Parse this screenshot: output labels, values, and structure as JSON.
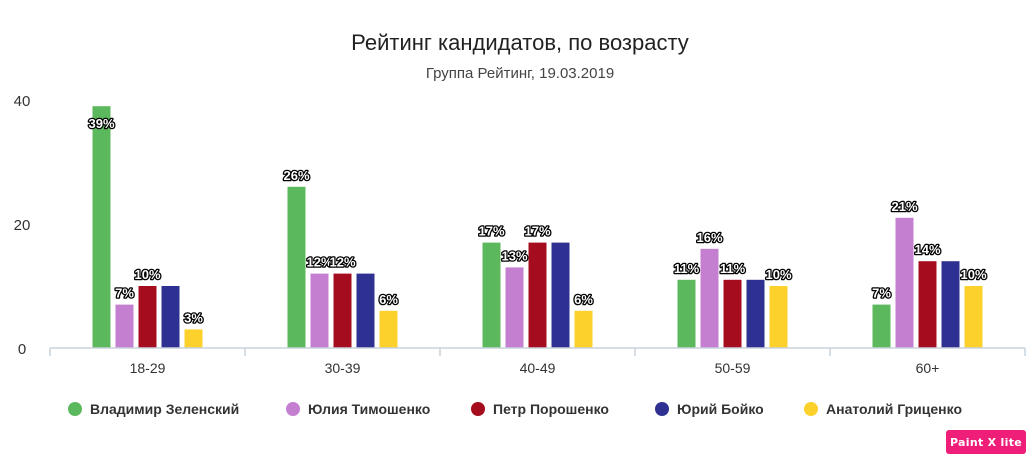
{
  "chart_data": {
    "type": "bar",
    "title": "Рейтинг кандидатов, по возрасту",
    "subtitle": "Группа Рейтинг, 19.03.2019",
    "categories": [
      "18-29",
      "30-39",
      "40-49",
      "50-59",
      "60+"
    ],
    "ylim": [
      0,
      40
    ],
    "yticks": [
      0,
      20,
      40
    ],
    "grid": false,
    "legend_position": "bottom",
    "series": [
      {
        "name": "Владимир Зеленский",
        "color": "#5cb85c",
        "values": [
          39,
          26,
          17,
          11,
          7
        ],
        "labels": [
          "39%",
          "26%",
          "17%",
          "11%",
          "7%"
        ]
      },
      {
        "name": "Юлия Тимошенко",
        "color": "#c47fd0",
        "values": [
          7,
          12,
          13,
          16,
          21
        ],
        "labels": [
          "7%",
          "12%",
          "13%",
          "16%",
          "21%"
        ]
      },
      {
        "name": "Петр Порошенко",
        "color": "#a50c1e",
        "values": [
          10,
          12,
          17,
          11,
          14
        ],
        "labels": [
          "10%",
          "12%",
          "17%",
          "11%",
          "14%"
        ]
      },
      {
        "name": "Юрий Бойко",
        "color": "#2e3191",
        "values": [
          10,
          12,
          17,
          11,
          14
        ],
        "labels": [
          "",
          "",
          "",
          "",
          ""
        ]
      },
      {
        "name": "Анатолий Гриценко",
        "color": "#fdd12c",
        "values": [
          3,
          6,
          6,
          10,
          10
        ],
        "labels": [
          "3%",
          "6%",
          "6%",
          "10%",
          "10%"
        ]
      }
    ]
  },
  "watermark": {
    "text": "Paint X lite",
    "color": "#ee1e79"
  }
}
